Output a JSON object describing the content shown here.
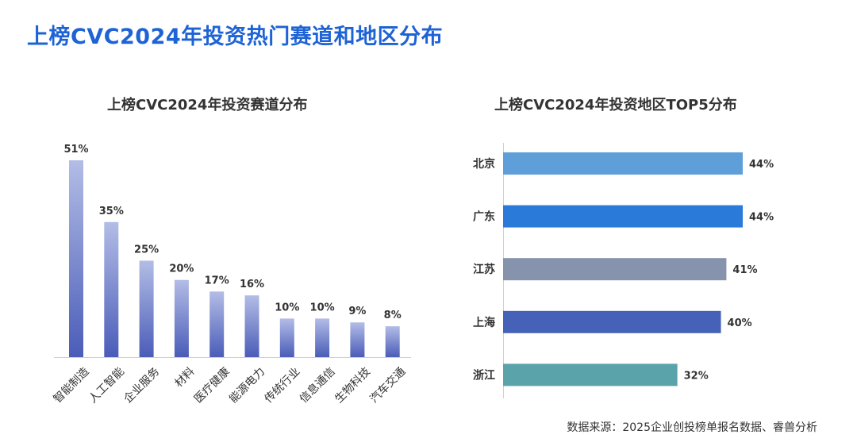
{
  "page_title": "上榜CVC2024年投资热门赛道和地区分布",
  "source": "数据来源：2025企业创投榜单报名数据、睿兽分析",
  "chart_data": [
    {
      "type": "bar",
      "title": "上榜CVC2024年投资赛道分布",
      "categories": [
        "智能制造",
        "人工智能",
        "企业服务",
        "材料",
        "医疗健康",
        "能源电力",
        "传统行业",
        "信息通信",
        "生物科技",
        "汽车交通"
      ],
      "values": [
        51,
        35,
        25,
        20,
        17,
        16,
        10,
        10,
        9,
        8
      ],
      "value_labels": [
        "51%",
        "35%",
        "25%",
        "20%",
        "17%",
        "16%",
        "10%",
        "10%",
        "9%",
        "8%"
      ],
      "ylim": [
        0,
        51
      ],
      "grid": false,
      "colors": {
        "bar_top": "#b3bde6",
        "bar_bottom": "#4a5cb8"
      }
    },
    {
      "type": "bar",
      "orientation": "horizontal",
      "title": "上榜CVC2024年投资地区TOP5分布",
      "categories": [
        "北京",
        "广东",
        "江苏",
        "上海",
        "浙江"
      ],
      "values": [
        44,
        44,
        41,
        40,
        32
      ],
      "value_labels": [
        "44%",
        "44%",
        "41%",
        "40%",
        "32%"
      ],
      "xlim": [
        0,
        44
      ],
      "grid": false,
      "colors": [
        "#5f9fd9",
        "#2a7ad9",
        "#8593ad",
        "#4561b8",
        "#5aa3ab"
      ]
    }
  ]
}
